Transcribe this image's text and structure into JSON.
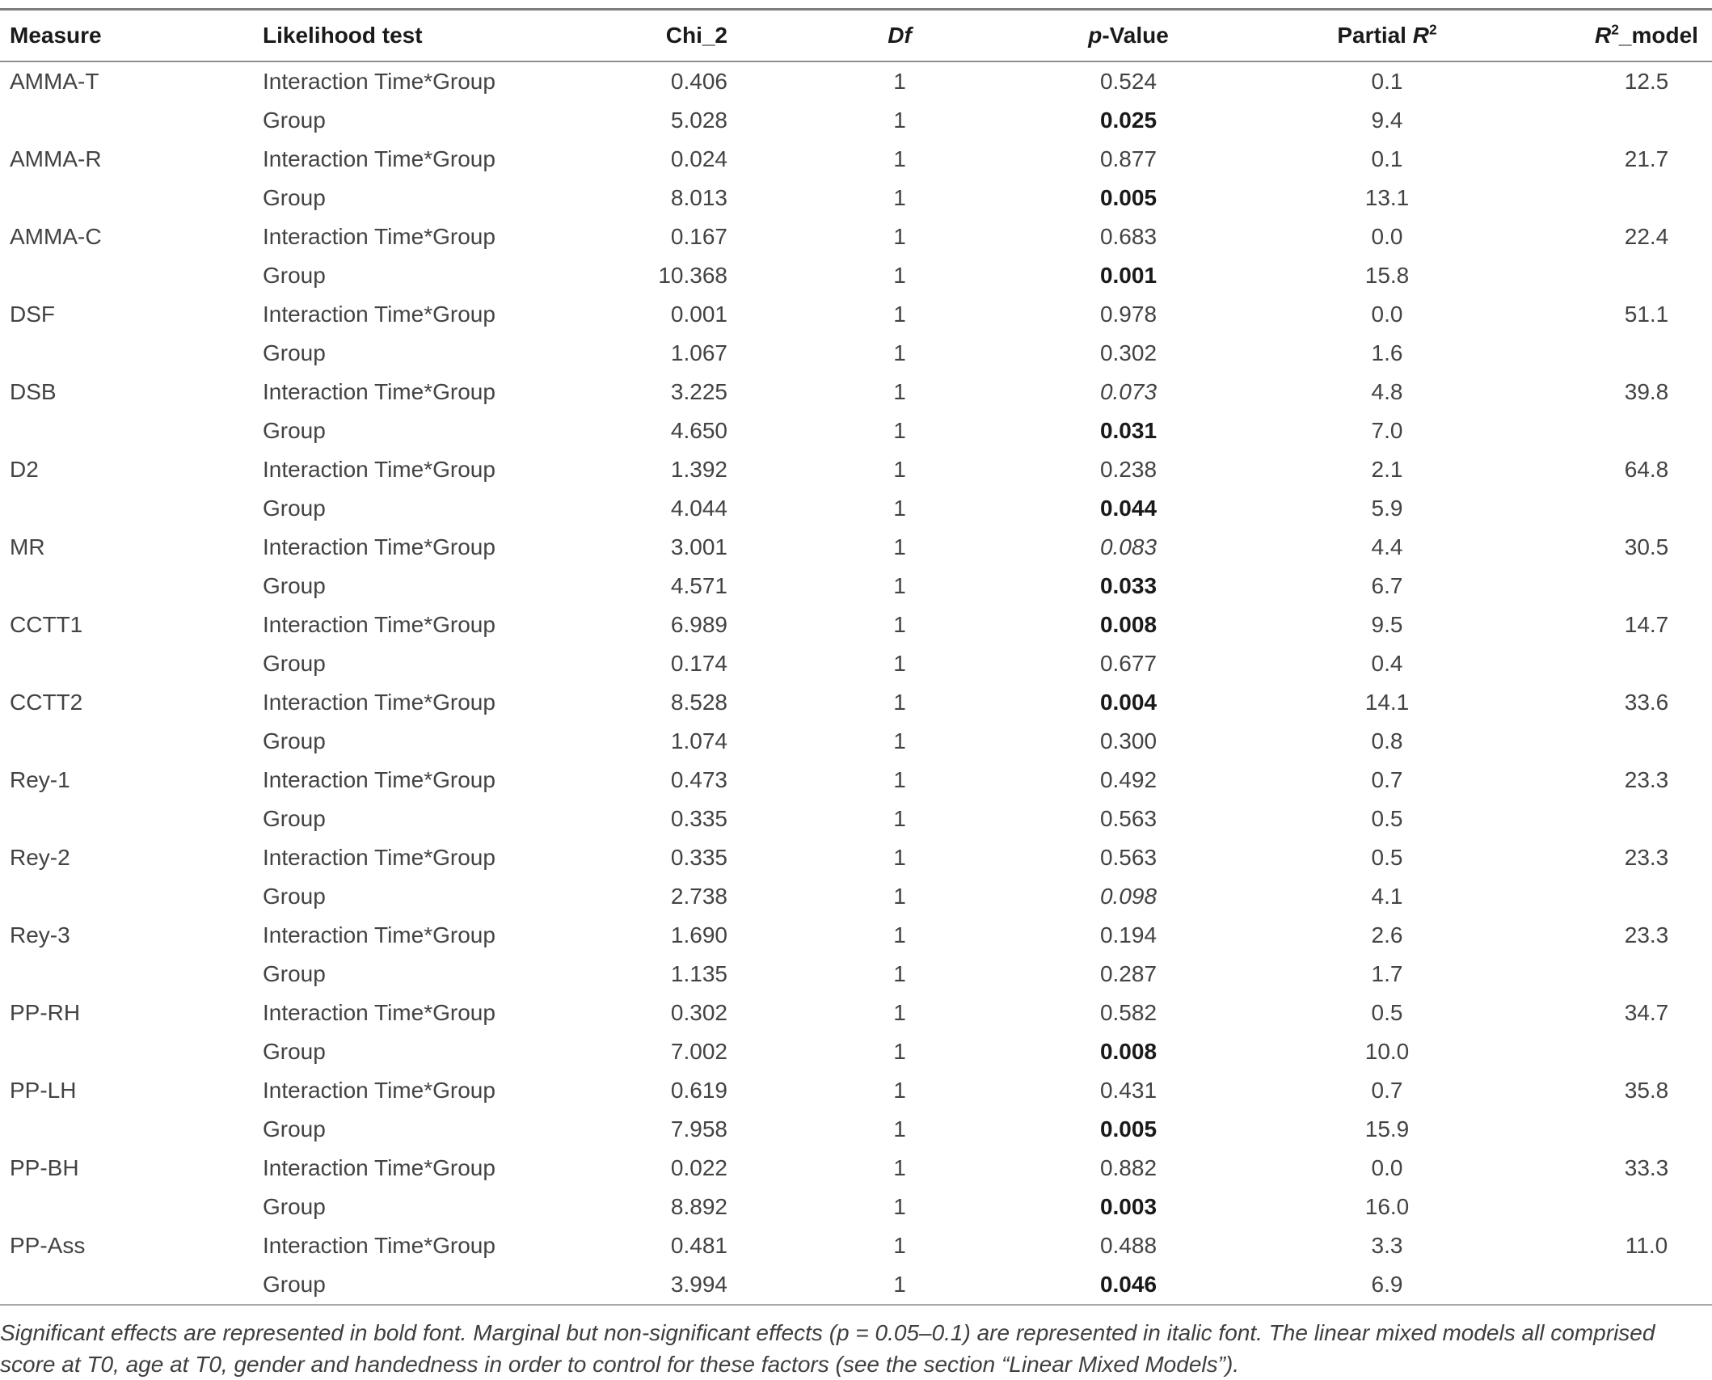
{
  "colors": {
    "body_text": "#434343",
    "header_text": "#1a1a1a",
    "rule_dark": "#7d7d7d",
    "rule_mid": "#8f8f8f",
    "rule_light": "#a8a8a8",
    "footnote_text": "#3f3f3f",
    "page_background": "#ffffff"
  },
  "table": {
    "headers": {
      "measure": "Measure",
      "likelihood_test": "Likelihood test",
      "chi2": "Chi_2",
      "df": "Df",
      "p_italic": "p",
      "p_rest": "-Value",
      "partial_prefix": "Partial ",
      "r_letter": "R",
      "sup_two": "2",
      "model_suffix": "_model"
    },
    "rows": [
      {
        "measure": "AMMA-T",
        "test": "Interaction Time*Group",
        "chi2": "0.406",
        "df": "1",
        "p": "0.524",
        "p_style": "normal",
        "partial_r2": "0.1",
        "r2_model": "12.5"
      },
      {
        "measure": "",
        "test": "Group",
        "chi2": "5.028",
        "df": "1",
        "p": "0.025",
        "p_style": "bold",
        "partial_r2": "9.4",
        "r2_model": ""
      },
      {
        "measure": "AMMA-R",
        "test": "Interaction Time*Group",
        "chi2": "0.024",
        "df": "1",
        "p": "0.877",
        "p_style": "normal",
        "partial_r2": "0.1",
        "r2_model": "21.7"
      },
      {
        "measure": "",
        "test": "Group",
        "chi2": "8.013",
        "df": "1",
        "p": "0.005",
        "p_style": "bold",
        "partial_r2": "13.1",
        "r2_model": ""
      },
      {
        "measure": "AMMA-C",
        "test": "Interaction Time*Group",
        "chi2": "0.167",
        "df": "1",
        "p": "0.683",
        "p_style": "normal",
        "partial_r2": "0.0",
        "r2_model": "22.4"
      },
      {
        "measure": "",
        "test": "Group",
        "chi2": "10.368",
        "df": "1",
        "p": "0.001",
        "p_style": "bold",
        "partial_r2": "15.8",
        "r2_model": ""
      },
      {
        "measure": "DSF",
        "test": "Interaction Time*Group",
        "chi2": "0.001",
        "df": "1",
        "p": "0.978",
        "p_style": "normal",
        "partial_r2": "0.0",
        "r2_model": "51.1"
      },
      {
        "measure": "",
        "test": "Group",
        "chi2": "1.067",
        "df": "1",
        "p": "0.302",
        "p_style": "normal",
        "partial_r2": "1.6",
        "r2_model": ""
      },
      {
        "measure": "DSB",
        "test": "Interaction Time*Group",
        "chi2": "3.225",
        "df": "1",
        "p": "0.073",
        "p_style": "italic",
        "partial_r2": "4.8",
        "r2_model": "39.8"
      },
      {
        "measure": "",
        "test": "Group",
        "chi2": "4.650",
        "df": "1",
        "p": "0.031",
        "p_style": "bold",
        "partial_r2": "7.0",
        "r2_model": ""
      },
      {
        "measure": "D2",
        "test": "Interaction Time*Group",
        "chi2": "1.392",
        "df": "1",
        "p": "0.238",
        "p_style": "normal",
        "partial_r2": "2.1",
        "r2_model": "64.8"
      },
      {
        "measure": "",
        "test": "Group",
        "chi2": "4.044",
        "df": "1",
        "p": "0.044",
        "p_style": "bold",
        "partial_r2": "5.9",
        "r2_model": ""
      },
      {
        "measure": "MR",
        "test": "Interaction Time*Group",
        "chi2": "3.001",
        "df": "1",
        "p": "0.083",
        "p_style": "italic",
        "partial_r2": "4.4",
        "r2_model": "30.5"
      },
      {
        "measure": "",
        "test": "Group",
        "chi2": "4.571",
        "df": "1",
        "p": "0.033",
        "p_style": "bold",
        "partial_r2": "6.7",
        "r2_model": ""
      },
      {
        "measure": "CCTT1",
        "test": "Interaction Time*Group",
        "chi2": "6.989",
        "df": "1",
        "p": "0.008",
        "p_style": "bold",
        "partial_r2": "9.5",
        "r2_model": "14.7"
      },
      {
        "measure": "",
        "test": "Group",
        "chi2": "0.174",
        "df": "1",
        "p": "0.677",
        "p_style": "normal",
        "partial_r2": "0.4",
        "r2_model": ""
      },
      {
        "measure": "CCTT2",
        "test": "Interaction Time*Group",
        "chi2": "8.528",
        "df": "1",
        "p": "0.004",
        "p_style": "bold",
        "partial_r2": "14.1",
        "r2_model": "33.6"
      },
      {
        "measure": "",
        "test": "Group",
        "chi2": "1.074",
        "df": "1",
        "p": "0.300",
        "p_style": "normal",
        "partial_r2": "0.8",
        "r2_model": ""
      },
      {
        "measure": "Rey-1",
        "test": "Interaction Time*Group",
        "chi2": "0.473",
        "df": "1",
        "p": "0.492",
        "p_style": "normal",
        "partial_r2": "0.7",
        "r2_model": "23.3"
      },
      {
        "measure": "",
        "test": "Group",
        "chi2": "0.335",
        "df": "1",
        "p": "0.563",
        "p_style": "normal",
        "partial_r2": "0.5",
        "r2_model": ""
      },
      {
        "measure": "Rey-2",
        "test": "Interaction Time*Group",
        "chi2": "0.335",
        "df": "1",
        "p": "0.563",
        "p_style": "normal",
        "partial_r2": "0.5",
        "r2_model": "23.3"
      },
      {
        "measure": "",
        "test": "Group",
        "chi2": "2.738",
        "df": "1",
        "p": "0.098",
        "p_style": "italic",
        "partial_r2": "4.1",
        "r2_model": ""
      },
      {
        "measure": "Rey-3",
        "test": "Interaction Time*Group",
        "chi2": "1.690",
        "df": "1",
        "p": "0.194",
        "p_style": "normal",
        "partial_r2": "2.6",
        "r2_model": "23.3"
      },
      {
        "measure": "",
        "test": "Group",
        "chi2": "1.135",
        "df": "1",
        "p": "0.287",
        "p_style": "normal",
        "partial_r2": "1.7",
        "r2_model": ""
      },
      {
        "measure": "PP-RH",
        "test": "Interaction Time*Group",
        "chi2": "0.302",
        "df": "1",
        "p": "0.582",
        "p_style": "normal",
        "partial_r2": "0.5",
        "r2_model": "34.7"
      },
      {
        "measure": "",
        "test": "Group",
        "chi2": "7.002",
        "df": "1",
        "p": "0.008",
        "p_style": "bold",
        "partial_r2": "10.0",
        "r2_model": ""
      },
      {
        "measure": "PP-LH",
        "test": "Interaction Time*Group",
        "chi2": "0.619",
        "df": "1",
        "p": "0.431",
        "p_style": "normal",
        "partial_r2": "0.7",
        "r2_model": "35.8"
      },
      {
        "measure": "",
        "test": "Group",
        "chi2": "7.958",
        "df": "1",
        "p": "0.005",
        "p_style": "bold",
        "partial_r2": "15.9",
        "r2_model": ""
      },
      {
        "measure": "PP-BH",
        "test": "Interaction Time*Group",
        "chi2": "0.022",
        "df": "1",
        "p": "0.882",
        "p_style": "normal",
        "partial_r2": "0.0",
        "r2_model": "33.3"
      },
      {
        "measure": "",
        "test": "Group",
        "chi2": "8.892",
        "df": "1",
        "p": "0.003",
        "p_style": "bold",
        "partial_r2": "16.0",
        "r2_model": ""
      },
      {
        "measure": "PP-Ass",
        "test": "Interaction Time*Group",
        "chi2": "0.481",
        "df": "1",
        "p": "0.488",
        "p_style": "normal",
        "partial_r2": "3.3",
        "r2_model": "11.0"
      },
      {
        "measure": "",
        "test": "Group",
        "chi2": "3.994",
        "df": "1",
        "p": "0.046",
        "p_style": "bold",
        "partial_r2": "6.9",
        "r2_model": ""
      }
    ]
  },
  "footnote": {
    "line1": "Significant effects are represented in bold font. Marginal but non-significant effects (p = 0.05–0.1) are represented in italic font. The linear mixed models all comprised",
    "line2": "score at T0, age at T0, gender and handedness in order to control for these factors (see the section “Linear Mixed Models”)."
  }
}
